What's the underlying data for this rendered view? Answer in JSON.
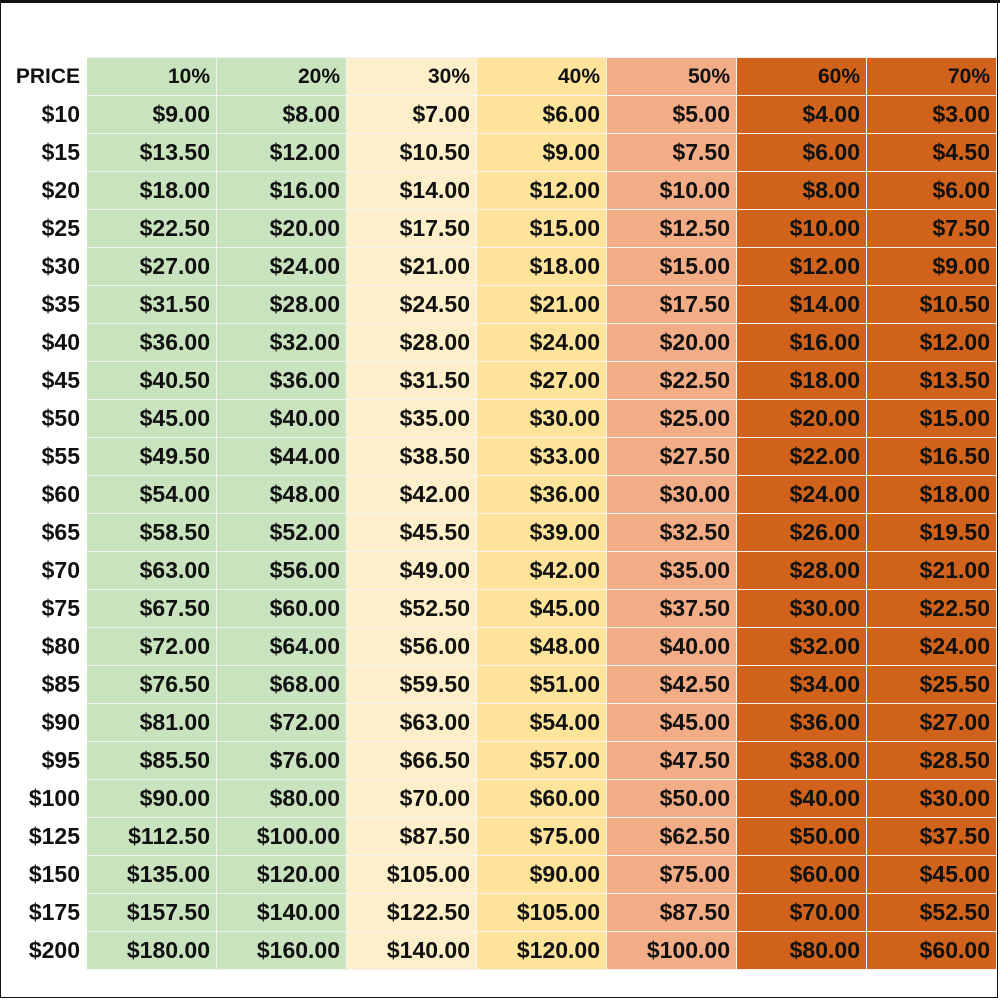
{
  "table": {
    "header_label": "PRICE",
    "column_colors": [
      "#c8e3be",
      "#c8e3be",
      "#fdefc9",
      "#fde49a",
      "#f3ad86",
      "#d0621b",
      "#d0621b"
    ],
    "columns": [
      "10%",
      "20%",
      "30%",
      "40%",
      "50%",
      "60%",
      "70%"
    ],
    "rows": [
      {
        "price": "$10",
        "values": [
          "$9.00",
          "$8.00",
          "$7.00",
          "$6.00",
          "$5.00",
          "$4.00",
          "$3.00"
        ]
      },
      {
        "price": "$15",
        "values": [
          "$13.50",
          "$12.00",
          "$10.50",
          "$9.00",
          "$7.50",
          "$6.00",
          "$4.50"
        ]
      },
      {
        "price": "$20",
        "values": [
          "$18.00",
          "$16.00",
          "$14.00",
          "$12.00",
          "$10.00",
          "$8.00",
          "$6.00"
        ]
      },
      {
        "price": "$25",
        "values": [
          "$22.50",
          "$20.00",
          "$17.50",
          "$15.00",
          "$12.50",
          "$10.00",
          "$7.50"
        ]
      },
      {
        "price": "$30",
        "values": [
          "$27.00",
          "$24.00",
          "$21.00",
          "$18.00",
          "$15.00",
          "$12.00",
          "$9.00"
        ]
      },
      {
        "price": "$35",
        "values": [
          "$31.50",
          "$28.00",
          "$24.50",
          "$21.00",
          "$17.50",
          "$14.00",
          "$10.50"
        ]
      },
      {
        "price": "$40",
        "values": [
          "$36.00",
          "$32.00",
          "$28.00",
          "$24.00",
          "$20.00",
          "$16.00",
          "$12.00"
        ]
      },
      {
        "price": "$45",
        "values": [
          "$40.50",
          "$36.00",
          "$31.50",
          "$27.00",
          "$22.50",
          "$18.00",
          "$13.50"
        ]
      },
      {
        "price": "$50",
        "values": [
          "$45.00",
          "$40.00",
          "$35.00",
          "$30.00",
          "$25.00",
          "$20.00",
          "$15.00"
        ]
      },
      {
        "price": "$55",
        "values": [
          "$49.50",
          "$44.00",
          "$38.50",
          "$33.00",
          "$27.50",
          "$22.00",
          "$16.50"
        ]
      },
      {
        "price": "$60",
        "values": [
          "$54.00",
          "$48.00",
          "$42.00",
          "$36.00",
          "$30.00",
          "$24.00",
          "$18.00"
        ]
      },
      {
        "price": "$65",
        "values": [
          "$58.50",
          "$52.00",
          "$45.50",
          "$39.00",
          "$32.50",
          "$26.00",
          "$19.50"
        ]
      },
      {
        "price": "$70",
        "values": [
          "$63.00",
          "$56.00",
          "$49.00",
          "$42.00",
          "$35.00",
          "$28.00",
          "$21.00"
        ]
      },
      {
        "price": "$75",
        "values": [
          "$67.50",
          "$60.00",
          "$52.50",
          "$45.00",
          "$37.50",
          "$30.00",
          "$22.50"
        ]
      },
      {
        "price": "$80",
        "values": [
          "$72.00",
          "$64.00",
          "$56.00",
          "$48.00",
          "$40.00",
          "$32.00",
          "$24.00"
        ]
      },
      {
        "price": "$85",
        "values": [
          "$76.50",
          "$68.00",
          "$59.50",
          "$51.00",
          "$42.50",
          "$34.00",
          "$25.50"
        ]
      },
      {
        "price": "$90",
        "values": [
          "$81.00",
          "$72.00",
          "$63.00",
          "$54.00",
          "$45.00",
          "$36.00",
          "$27.00"
        ]
      },
      {
        "price": "$95",
        "values": [
          "$85.50",
          "$76.00",
          "$66.50",
          "$57.00",
          "$47.50",
          "$38.00",
          "$28.50"
        ]
      },
      {
        "price": "$100",
        "values": [
          "$90.00",
          "$80.00",
          "$70.00",
          "$60.00",
          "$50.00",
          "$40.00",
          "$30.00"
        ]
      },
      {
        "price": "$125",
        "values": [
          "$112.50",
          "$100.00",
          "$87.50",
          "$75.00",
          "$62.50",
          "$50.00",
          "$37.50"
        ]
      },
      {
        "price": "$150",
        "values": [
          "$135.00",
          "$120.00",
          "$105.00",
          "$90.00",
          "$75.00",
          "$60.00",
          "$45.00"
        ]
      },
      {
        "price": "$175",
        "values": [
          "$157.50",
          "$140.00",
          "$122.50",
          "$105.00",
          "$87.50",
          "$70.00",
          "$52.50"
        ]
      },
      {
        "price": "$200",
        "values": [
          "$180.00",
          "$160.00",
          "$140.00",
          "$120.00",
          "$100.00",
          "$80.00",
          "$60.00"
        ]
      }
    ]
  }
}
